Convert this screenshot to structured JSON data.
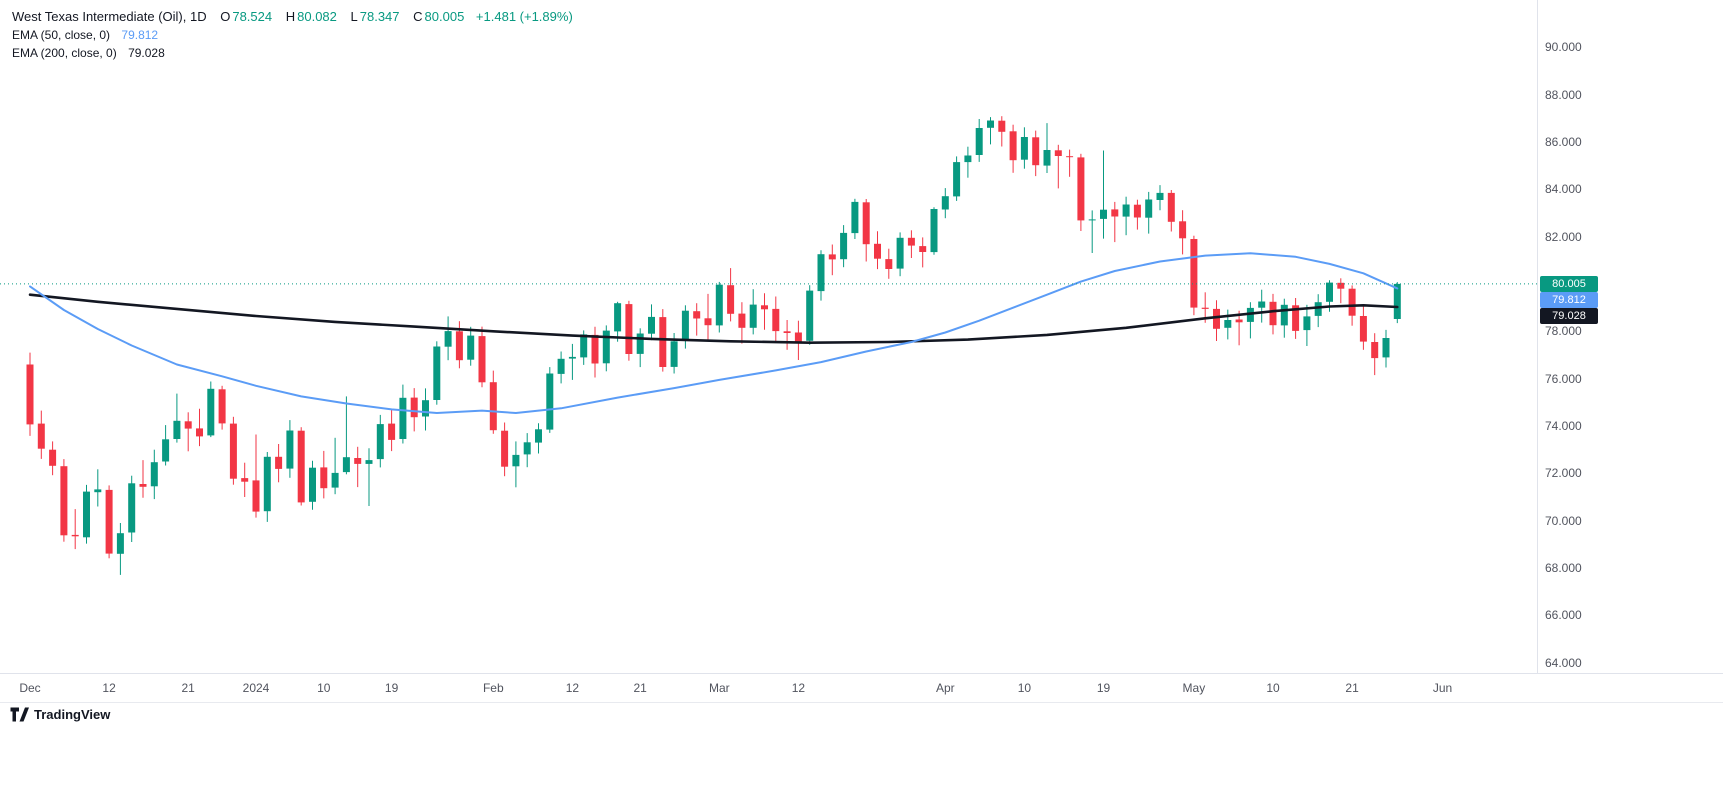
{
  "header": {
    "title": "West Texas Intermediate (Oil), 1D",
    "ohlc": [
      {
        "label": "O",
        "value": "78.524"
      },
      {
        "label": "H",
        "value": "80.082"
      },
      {
        "label": "L",
        "value": "78.347"
      },
      {
        "label": "C",
        "value": "80.005"
      }
    ],
    "change": "+1.481 (+1.89%)",
    "indicators": [
      {
        "name": "EMA (50, close, 0)",
        "value": "79.812"
      },
      {
        "name": "EMA (200, close, 0)",
        "value": "79.028"
      }
    ]
  },
  "price_axis": {
    "labels": [
      "90.000",
      "88.000",
      "86.000",
      "84.000",
      "82.000",
      "78.000",
      "76.000",
      "74.000",
      "72.000",
      "70.000",
      "68.000",
      "66.000",
      "64.000"
    ],
    "badges": [
      {
        "name": "last-price-badge",
        "text": "80.005",
        "price": 80.005,
        "bg": "#089981"
      },
      {
        "name": "ema50-price-badge",
        "text": "79.812",
        "price": 79.812,
        "bg": "#5b9cf6"
      },
      {
        "name": "ema200-price-badge",
        "text": "79.028",
        "price": 79.028,
        "bg": "#131722"
      }
    ]
  },
  "time_axis": {
    "labels": [
      {
        "text": "Dec",
        "index": 0
      },
      {
        "text": "12",
        "index": 7
      },
      {
        "text": "21",
        "index": 14
      },
      {
        "text": "2024",
        "index": 20
      },
      {
        "text": "10",
        "index": 26
      },
      {
        "text": "19",
        "index": 32
      },
      {
        "text": "Feb",
        "index": 41
      },
      {
        "text": "12",
        "index": 48
      },
      {
        "text": "21",
        "index": 54
      },
      {
        "text": "Mar",
        "index": 61
      },
      {
        "text": "12",
        "index": 68
      },
      {
        "text": "Apr",
        "index": 81
      },
      {
        "text": "10",
        "index": 88
      },
      {
        "text": "19",
        "index": 95
      },
      {
        "text": "May",
        "index": 103
      },
      {
        "text": "10",
        "index": 110
      },
      {
        "text": "21",
        "index": 117
      },
      {
        "text": "Jun",
        "index": 125
      }
    ]
  },
  "footer": {
    "logo_text": "TradingView"
  },
  "chart_data": {
    "type": "candlestick",
    "title": "West Texas Intermediate (Oil)",
    "interval": "1D",
    "current_price": 80.005,
    "last_bar": {
      "open": 78.524,
      "high": 80.082,
      "low": 78.347,
      "close": 80.005,
      "change_abs": 1.481,
      "change_pct": 1.89
    },
    "ylim": [
      64,
      90
    ],
    "grid": false,
    "colors": {
      "up": "#089981",
      "down": "#f23645",
      "ema50": "#5b9cf6",
      "ema200": "#131722",
      "price_line": "#089981"
    },
    "candle_format": [
      "date",
      "open",
      "high",
      "low",
      "close"
    ],
    "candles": [
      [
        "2023-12-01",
        76.6,
        77.1,
        73.58,
        74.07
      ],
      [
        "2023-12-04",
        74.1,
        74.65,
        72.61,
        73.04
      ],
      [
        "2023-12-05",
        73.0,
        73.35,
        71.92,
        72.32
      ],
      [
        "2023-12-06",
        72.3,
        72.6,
        69.11,
        69.38
      ],
      [
        "2023-12-07",
        69.4,
        70.49,
        68.8,
        69.34
      ],
      [
        "2023-12-08",
        69.3,
        71.51,
        69.03,
        71.23
      ],
      [
        "2023-12-11",
        71.2,
        72.17,
        70.6,
        71.32
      ],
      [
        "2023-12-12",
        71.3,
        71.49,
        68.41,
        68.61
      ],
      [
        "2023-12-13",
        68.6,
        69.9,
        67.71,
        69.47
      ],
      [
        "2023-12-14",
        69.5,
        71.9,
        69.1,
        71.58
      ],
      [
        "2023-12-15",
        71.55,
        72.56,
        70.97,
        71.43
      ],
      [
        "2023-12-18",
        71.45,
        73.0,
        70.91,
        72.47
      ],
      [
        "2023-12-19",
        72.5,
        74.04,
        72.33,
        73.44
      ],
      [
        "2023-12-20",
        73.45,
        75.37,
        73.3,
        74.22
      ],
      [
        "2023-12-21",
        74.2,
        74.58,
        72.93,
        73.89
      ],
      [
        "2023-12-22",
        73.9,
        74.73,
        73.15,
        73.56
      ],
      [
        "2023-12-26",
        73.6,
        75.88,
        73.53,
        75.57
      ],
      [
        "2023-12-27",
        75.55,
        75.7,
        73.85,
        74.11
      ],
      [
        "2023-12-28",
        74.1,
        74.39,
        71.52,
        71.77
      ],
      [
        "2023-12-29",
        71.8,
        72.45,
        71.0,
        71.65
      ],
      [
        "2024-01-02",
        71.7,
        73.64,
        70.13,
        70.38
      ],
      [
        "2024-01-03",
        70.4,
        72.9,
        69.95,
        72.7
      ],
      [
        "2024-01-04",
        72.7,
        73.24,
        71.62,
        72.19
      ],
      [
        "2024-01-05",
        72.2,
        74.25,
        71.81,
        73.81
      ],
      [
        "2024-01-08",
        73.8,
        73.95,
        70.64,
        70.77
      ],
      [
        "2024-01-09",
        70.8,
        72.53,
        70.46,
        72.24
      ],
      [
        "2024-01-10",
        72.25,
        72.95,
        70.94,
        71.37
      ],
      [
        "2024-01-11",
        71.4,
        73.5,
        71.12,
        72.02
      ],
      [
        "2024-01-12",
        72.05,
        75.25,
        71.96,
        72.68
      ],
      [
        "2024-01-16",
        72.65,
        73.12,
        71.42,
        72.4
      ],
      [
        "2024-01-17",
        72.4,
        73.06,
        70.62,
        72.56
      ],
      [
        "2024-01-18",
        72.6,
        74.47,
        72.25,
        74.08
      ],
      [
        "2024-01-19",
        74.1,
        74.69,
        72.94,
        73.41
      ],
      [
        "2024-01-22",
        73.45,
        75.75,
        73.26,
        75.19
      ],
      [
        "2024-01-23",
        75.2,
        75.6,
        73.77,
        74.37
      ],
      [
        "2024-01-24",
        74.4,
        75.59,
        73.81,
        75.09
      ],
      [
        "2024-01-25",
        75.1,
        77.58,
        74.9,
        77.36
      ],
      [
        "2024-01-26",
        77.35,
        78.63,
        76.78,
        78.01
      ],
      [
        "2024-01-29",
        78.0,
        78.43,
        76.44,
        76.78
      ],
      [
        "2024-01-30",
        76.8,
        78.19,
        76.55,
        77.82
      ],
      [
        "2024-01-31",
        77.8,
        78.2,
        75.64,
        75.85
      ],
      [
        "2024-02-01",
        75.85,
        76.34,
        73.67,
        73.82
      ],
      [
        "2024-02-02",
        73.8,
        74.15,
        71.88,
        72.28
      ],
      [
        "2024-02-05",
        72.3,
        73.35,
        71.41,
        72.78
      ],
      [
        "2024-02-06",
        72.8,
        73.7,
        72.26,
        73.31
      ],
      [
        "2024-02-07",
        73.3,
        74.12,
        72.84,
        73.86
      ],
      [
        "2024-02-08",
        73.85,
        76.49,
        73.71,
        76.22
      ],
      [
        "2024-02-09",
        76.2,
        77.15,
        75.8,
        76.84
      ],
      [
        "2024-02-12",
        76.85,
        77.47,
        75.95,
        76.92
      ],
      [
        "2024-02-13",
        76.9,
        78.04,
        76.58,
        77.87
      ],
      [
        "2024-02-14",
        77.85,
        78.19,
        76.05,
        76.64
      ],
      [
        "2024-02-15",
        76.65,
        78.25,
        76.31,
        78.03
      ],
      [
        "2024-02-16",
        78.0,
        79.25,
        77.56,
        79.19
      ],
      [
        "2024-02-20",
        79.15,
        79.29,
        76.76,
        77.04
      ],
      [
        "2024-02-21",
        77.05,
        78.13,
        76.49,
        77.91
      ],
      [
        "2024-02-22",
        77.9,
        79.14,
        77.63,
        78.61
      ],
      [
        "2024-02-23",
        78.6,
        78.94,
        76.3,
        76.49
      ],
      [
        "2024-02-26",
        76.5,
        77.93,
        76.22,
        77.58
      ],
      [
        "2024-02-27",
        77.6,
        79.1,
        77.27,
        78.87
      ],
      [
        "2024-02-28",
        78.85,
        79.19,
        77.82,
        78.54
      ],
      [
        "2024-02-29",
        78.55,
        79.58,
        77.6,
        78.26
      ],
      [
        "2024-03-01",
        78.25,
        80.09,
        77.95,
        79.97
      ],
      [
        "2024-03-04",
        79.95,
        80.67,
        78.42,
        78.74
      ],
      [
        "2024-03-05",
        78.75,
        79.23,
        77.48,
        78.15
      ],
      [
        "2024-03-06",
        78.15,
        79.78,
        77.87,
        79.13
      ],
      [
        "2024-03-07",
        79.1,
        79.61,
        78.07,
        78.93
      ],
      [
        "2024-03-08",
        78.95,
        79.47,
        77.58,
        78.01
      ],
      [
        "2024-03-11",
        78.0,
        78.48,
        77.22,
        77.93
      ],
      [
        "2024-03-12",
        77.95,
        78.45,
        76.79,
        77.56
      ],
      [
        "2024-03-13",
        77.6,
        79.95,
        77.43,
        79.72
      ],
      [
        "2024-03-14",
        79.7,
        81.43,
        79.3,
        81.26
      ],
      [
        "2024-03-15",
        81.25,
        81.67,
        80.37,
        81.04
      ],
      [
        "2024-03-18",
        81.05,
        82.49,
        80.71,
        82.16
      ],
      [
        "2024-03-19",
        82.15,
        83.6,
        81.9,
        83.47
      ],
      [
        "2024-03-20",
        83.45,
        83.59,
        80.95,
        81.68
      ],
      [
        "2024-03-21",
        81.7,
        82.23,
        80.63,
        81.07
      ],
      [
        "2024-03-22",
        81.05,
        81.49,
        80.22,
        80.63
      ],
      [
        "2024-03-25",
        80.65,
        82.18,
        80.33,
        81.95
      ],
      [
        "2024-03-26",
        81.95,
        82.27,
        81.1,
        81.62
      ],
      [
        "2024-03-27",
        81.6,
        81.97,
        80.7,
        81.35
      ],
      [
        "2024-03-28",
        81.35,
        83.24,
        81.24,
        83.17
      ],
      [
        "2024-04-01",
        83.15,
        84.05,
        82.78,
        83.71
      ],
      [
        "2024-04-02",
        83.7,
        85.39,
        83.51,
        85.15
      ],
      [
        "2024-04-03",
        85.15,
        85.8,
        84.49,
        85.43
      ],
      [
        "2024-04-04",
        85.45,
        86.97,
        85.16,
        86.59
      ],
      [
        "2024-04-05",
        86.6,
        87.05,
        85.9,
        86.91
      ],
      [
        "2024-04-08",
        86.9,
        87.09,
        85.81,
        86.43
      ],
      [
        "2024-04-09",
        86.45,
        86.73,
        84.7,
        85.23
      ],
      [
        "2024-04-10",
        85.25,
        86.62,
        84.87,
        86.21
      ],
      [
        "2024-04-11",
        86.2,
        86.48,
        84.56,
        85.02
      ],
      [
        "2024-04-12",
        85.0,
        86.8,
        84.69,
        85.66
      ],
      [
        "2024-04-15",
        85.65,
        85.88,
        84.04,
        85.41
      ],
      [
        "2024-04-16",
        85.4,
        85.68,
        84.53,
        85.36
      ],
      [
        "2024-04-17",
        85.35,
        85.5,
        82.24,
        82.69
      ],
      [
        "2024-04-18",
        82.7,
        83.11,
        81.31,
        82.73
      ],
      [
        "2024-04-19",
        82.75,
        85.64,
        81.92,
        83.14
      ],
      [
        "2024-04-22",
        83.15,
        83.47,
        81.77,
        82.85
      ],
      [
        "2024-04-23",
        82.85,
        83.69,
        82.06,
        83.36
      ],
      [
        "2024-04-24",
        83.35,
        83.56,
        82.3,
        82.81
      ],
      [
        "2024-04-25",
        82.8,
        83.89,
        82.13,
        83.57
      ],
      [
        "2024-04-26",
        83.55,
        84.18,
        83.12,
        83.85
      ],
      [
        "2024-04-29",
        83.85,
        83.97,
        82.22,
        82.63
      ],
      [
        "2024-04-30",
        82.65,
        83.12,
        81.25,
        81.93
      ],
      [
        "2024-05-01",
        81.9,
        82.04,
        78.68,
        79.0
      ],
      [
        "2024-05-02",
        79.0,
        79.65,
        78.36,
        78.95
      ],
      [
        "2024-05-03",
        78.95,
        79.31,
        77.59,
        78.11
      ],
      [
        "2024-05-06",
        78.15,
        78.92,
        77.66,
        78.48
      ],
      [
        "2024-05-07",
        78.5,
        78.87,
        77.41,
        78.38
      ],
      [
        "2024-05-08",
        78.4,
        79.23,
        77.7,
        78.99
      ],
      [
        "2024-05-09",
        79.0,
        79.76,
        78.37,
        79.26
      ],
      [
        "2024-05-10",
        79.25,
        79.58,
        77.87,
        78.26
      ],
      [
        "2024-05-13",
        78.25,
        79.38,
        77.73,
        79.12
      ],
      [
        "2024-05-14",
        79.1,
        79.41,
        77.68,
        78.02
      ],
      [
        "2024-05-15",
        78.05,
        79.12,
        77.38,
        78.63
      ],
      [
        "2024-05-16",
        78.65,
        79.57,
        78.18,
        79.23
      ],
      [
        "2024-05-17",
        79.25,
        80.16,
        78.83,
        80.06
      ],
      [
        "2024-05-20",
        80.05,
        80.24,
        79.19,
        79.8
      ],
      [
        "2024-05-21",
        79.8,
        79.94,
        78.24,
        78.66
      ],
      [
        "2024-05-22",
        78.65,
        79.08,
        77.22,
        77.57
      ],
      [
        "2024-05-23",
        77.55,
        77.92,
        76.15,
        76.87
      ],
      [
        "2024-05-24",
        76.9,
        78.06,
        76.47,
        77.72
      ],
      [
        "2024-05-28",
        78.524,
        80.082,
        78.347,
        80.005
      ]
    ],
    "ema50": {
      "period": 50,
      "source": "close",
      "last": 79.812,
      "keypoints": [
        [
          0,
          79.9
        ],
        [
          3,
          78.9
        ],
        [
          6,
          78.1
        ],
        [
          9,
          77.4
        ],
        [
          13,
          76.6
        ],
        [
          17,
          76.1
        ],
        [
          20,
          75.7
        ],
        [
          24,
          75.25
        ],
        [
          28,
          74.95
        ],
        [
          32,
          74.7
        ],
        [
          36,
          74.55
        ],
        [
          40,
          74.65
        ],
        [
          43,
          74.55
        ],
        [
          47,
          74.75
        ],
        [
          52,
          75.2
        ],
        [
          57,
          75.6
        ],
        [
          61,
          75.95
        ],
        [
          66,
          76.35
        ],
        [
          70,
          76.7
        ],
        [
          74,
          77.15
        ],
        [
          78,
          77.55
        ],
        [
          81,
          77.95
        ],
        [
          84,
          78.45
        ],
        [
          87,
          79.0
        ],
        [
          90,
          79.55
        ],
        [
          93,
          80.1
        ],
        [
          96,
          80.55
        ],
        [
          100,
          80.95
        ],
        [
          104,
          81.2
        ],
        [
          108,
          81.3
        ],
        [
          112,
          81.15
        ],
        [
          115,
          80.85
        ],
        [
          118,
          80.45
        ],
        [
          121,
          79.812
        ]
      ]
    },
    "ema200": {
      "period": 200,
      "source": "close",
      "last": 79.028,
      "keypoints": [
        [
          0,
          79.55
        ],
        [
          6,
          79.25
        ],
        [
          13,
          78.95
        ],
        [
          20,
          78.65
        ],
        [
          27,
          78.4
        ],
        [
          34,
          78.2
        ],
        [
          41,
          78.0
        ],
        [
          48,
          77.82
        ],
        [
          55,
          77.68
        ],
        [
          62,
          77.58
        ],
        [
          69,
          77.52
        ],
        [
          76,
          77.55
        ],
        [
          83,
          77.65
        ],
        [
          90,
          77.85
        ],
        [
          97,
          78.15
        ],
        [
          104,
          78.55
        ],
        [
          110,
          78.85
        ],
        [
          115,
          79.05
        ],
        [
          118,
          79.1
        ],
        [
          121,
          79.028
        ]
      ]
    }
  }
}
